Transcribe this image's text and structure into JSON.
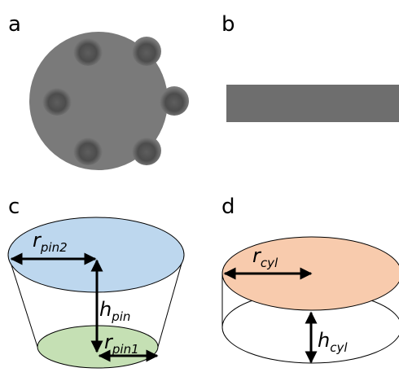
{
  "panels": [
    {
      "label": "a"
    },
    {
      "label": "b"
    },
    {
      "label": "c"
    },
    {
      "label": "d"
    }
  ],
  "annotations": [
    {
      "symbol": "r",
      "subscript": "pin2"
    },
    {
      "symbol": "h",
      "subscript": "pin"
    },
    {
      "symbol": "r",
      "subscript": "pin1"
    },
    {
      "symbol": "r",
      "subscript": "cyl"
    },
    {
      "symbol": "h",
      "subscript": "cyl"
    }
  ]
}
